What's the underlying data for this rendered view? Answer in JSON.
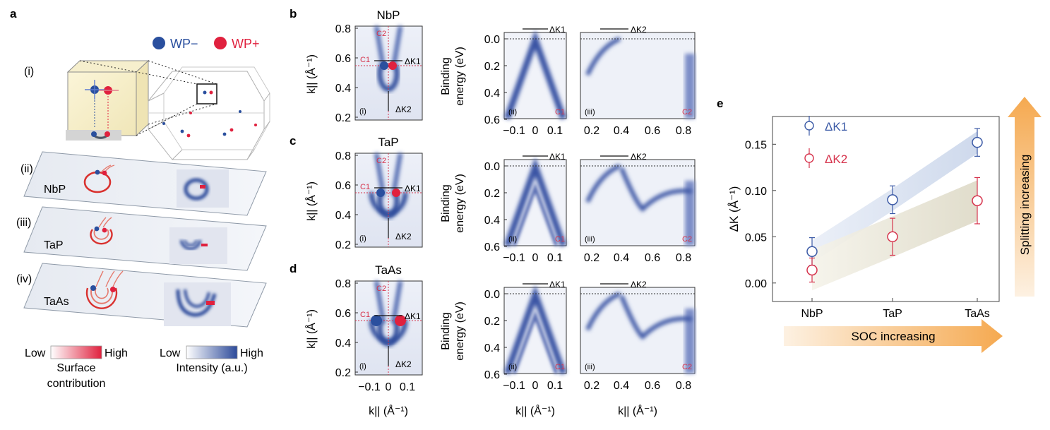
{
  "panel_letters": {
    "a": "a",
    "b": "b",
    "c": "c",
    "d": "d",
    "e": "e"
  },
  "panel_a": {
    "legend": {
      "wp_minus": "WP−",
      "wp_plus": "WP+"
    },
    "sublabels": [
      "(i)",
      "(ii)",
      "(iii)",
      "(iv)"
    ],
    "materials": [
      "NbP",
      "TaP",
      "TaAs"
    ],
    "colorbars": {
      "surface": {
        "low": "Low",
        "high": "High",
        "caption_line1": "Surface",
        "caption_line2": "contribution"
      },
      "intensity": {
        "low": "Low",
        "high": "High",
        "caption": "Intensity (a.u.)"
      }
    },
    "colors": {
      "wp_minus": "#2a4f9e",
      "wp_plus": "#e0213e",
      "arc": "#d9322f",
      "intensity": "#2c4a9a"
    }
  },
  "arpes": {
    "rows": [
      {
        "material": "NbP"
      },
      {
        "material": "TaP"
      },
      {
        "material": "TaAs"
      }
    ],
    "fs_panel": {
      "sublabel": "(i)",
      "cut1": "C1",
      "cut2": "C2",
      "dk1": "ΔK1",
      "dk2": "ΔK2",
      "yticks": [
        "0.8",
        "0.6",
        "0.4",
        "0.2"
      ],
      "ylabel": "k|| (Å⁻¹)",
      "xticks": [
        "−0.1",
        "0",
        "0.1"
      ],
      "xlabel": "k|| (Å⁻¹)"
    },
    "c1_panel": {
      "sublabel": "(ii)",
      "cut": "C1",
      "dk": "ΔK1",
      "ylabel_line1": "Binding",
      "ylabel_line2": "energy (eV)",
      "yticks": [
        "0.0",
        "0.2",
        "0.4",
        "0.6"
      ],
      "xticks": [
        "−0.1",
        "0",
        "0.1"
      ],
      "xlabel": "k|| (Å⁻¹)"
    },
    "c2_panel": {
      "sublabel": "(iii)",
      "cut": "C2",
      "dk": "ΔK2",
      "xticks": [
        "0.2",
        "0.4",
        "0.6",
        "0.8"
      ],
      "xlabel": "k|| (Å⁻¹)"
    }
  },
  "chart_data": {
    "type": "scatter",
    "categories": [
      "NbP",
      "TaP",
      "TaAs"
    ],
    "series": [
      {
        "name": "ΔK1",
        "color": "#3b5aa6",
        "values": [
          0.034,
          0.09,
          0.152
        ],
        "errors": [
          0.015,
          0.015,
          0.015
        ]
      },
      {
        "name": "ΔK2",
        "color": "#d6334c",
        "values": [
          0.014,
          0.05,
          0.089
        ],
        "errors": [
          0.013,
          0.02,
          0.025
        ]
      }
    ],
    "ylabel": "ΔK (Å⁻¹)",
    "ylim": [
      -0.02,
      0.18
    ],
    "yticks": [
      "0.00",
      "0.05",
      "0.10",
      "0.15"
    ],
    "ytick_values": [
      0,
      0.05,
      0.1,
      0.15
    ],
    "legend": "top-left",
    "grid": false,
    "annotations": {
      "x_arrow": "SOC increasing",
      "y_arrow": "Splitting increasing"
    }
  }
}
